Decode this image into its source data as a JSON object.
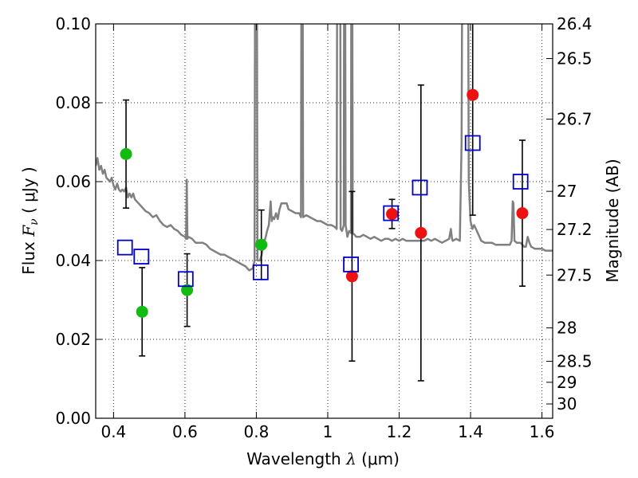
{
  "chart_data": {
    "type": "scatter",
    "xlabel": "Wavelength",
    "xlabel_symbol": "λ",
    "xlabel_unit": "(μm)",
    "ylabel": "Flux",
    "ylabel_symbol": "F",
    "ylabel_subscript": "ν",
    "ylabel_unit": "( μJy )",
    "y2label": "Magnitude (AB)",
    "xlim": [
      0.35,
      1.63
    ],
    "ylim": [
      0.0,
      0.1
    ],
    "grid": true,
    "x_ticks": [
      {
        "v": 0.4,
        "label": "0.4"
      },
      {
        "v": 0.6,
        "label": "0.6"
      },
      {
        "v": 0.8,
        "label": "0.8"
      },
      {
        "v": 1.0,
        "label": "1"
      },
      {
        "v": 1.2,
        "label": "1.2"
      },
      {
        "v": 1.4,
        "label": "1.4"
      },
      {
        "v": 1.6,
        "label": "1.6"
      }
    ],
    "y_ticks": [
      {
        "v": 0.0,
        "label": "0.00"
      },
      {
        "v": 0.02,
        "label": "0.02"
      },
      {
        "v": 0.04,
        "label": "0.04"
      },
      {
        "v": 0.06,
        "label": "0.06"
      },
      {
        "v": 0.08,
        "label": "0.08"
      },
      {
        "v": 0.1,
        "label": "0.10"
      }
    ],
    "mag_ticks": [
      {
        "mag": 26.4,
        "label": "26.4"
      },
      {
        "mag": 26.5,
        "label": "26.5"
      },
      {
        "mag": 26.7,
        "label": "26.7"
      },
      {
        "mag": 27,
        "label": "27"
      },
      {
        "mag": 27.2,
        "label": "27.2"
      },
      {
        "mag": 27.5,
        "label": "27.5"
      },
      {
        "mag": 28,
        "label": "28"
      },
      {
        "mag": 28.5,
        "label": "28.5"
      },
      {
        "mag": 29,
        "label": "29"
      },
      {
        "mag": 30,
        "label": "30"
      }
    ],
    "series": [
      {
        "marker": "circle",
        "color": "#11bb11",
        "points": [
          {
            "x": 0.435,
            "y": 0.067,
            "err": 0.0137
          },
          {
            "x": 0.48,
            "y": 0.027,
            "err": 0.0112
          },
          {
            "x": 0.606,
            "y": 0.0325,
            "err": 0.0092
          },
          {
            "x": 0.814,
            "y": 0.044,
            "err": 0.0088
          }
        ]
      },
      {
        "marker": "circle",
        "color": "#ee1111",
        "points": [
          {
            "x": 1.068,
            "y": 0.036,
            "err": 0.0215
          },
          {
            "x": 1.18,
            "y": 0.0518,
            "err": 0.0037
          },
          {
            "x": 1.261,
            "y": 0.047,
            "err": 0.0375
          },
          {
            "x": 1.406,
            "y": 0.082,
            "err": 0.0305
          },
          {
            "x": 1.545,
            "y": 0.052,
            "err": 0.0185
          }
        ]
      },
      {
        "marker": "open-square",
        "color": "#0000cc",
        "points": [
          {
            "x": 0.432,
            "y": 0.0433
          },
          {
            "x": 0.478,
            "y": 0.041
          },
          {
            "x": 0.602,
            "y": 0.0353
          },
          {
            "x": 0.812,
            "y": 0.037
          },
          {
            "x": 1.065,
            "y": 0.039
          },
          {
            "x": 1.177,
            "y": 0.052
          },
          {
            "x": 1.258,
            "y": 0.0585
          },
          {
            "x": 1.406,
            "y": 0.0698
          },
          {
            "x": 1.54,
            "y": 0.06
          }
        ]
      }
    ],
    "template_spectrum": {
      "color": "#808080",
      "points": [
        [
          0.35,
          0.064
        ],
        [
          0.355,
          0.066
        ],
        [
          0.36,
          0.063
        ],
        [
          0.365,
          0.064
        ],
        [
          0.37,
          0.062
        ],
        [
          0.375,
          0.063
        ],
        [
          0.38,
          0.061
        ],
        [
          0.385,
          0.0605
        ],
        [
          0.39,
          0.06
        ],
        [
          0.395,
          0.061
        ],
        [
          0.4,
          0.059
        ],
        [
          0.405,
          0.058
        ],
        [
          0.41,
          0.0595
        ],
        [
          0.415,
          0.058
        ],
        [
          0.42,
          0.0575
        ],
        [
          0.425,
          0.058
        ],
        [
          0.43,
          0.0575
        ],
        [
          0.435,
          0.0585
        ],
        [
          0.44,
          0.056
        ],
        [
          0.445,
          0.057
        ],
        [
          0.45,
          0.056
        ],
        [
          0.455,
          0.057
        ],
        [
          0.46,
          0.0555
        ],
        [
          0.47,
          0.0545
        ],
        [
          0.48,
          0.0535
        ],
        [
          0.49,
          0.0525
        ],
        [
          0.5,
          0.052
        ],
        [
          0.51,
          0.051
        ],
        [
          0.52,
          0.0515
        ],
        [
          0.53,
          0.05
        ],
        [
          0.54,
          0.049
        ],
        [
          0.55,
          0.0485
        ],
        [
          0.56,
          0.049
        ],
        [
          0.57,
          0.048
        ],
        [
          0.58,
          0.0475
        ],
        [
          0.59,
          0.0465
        ],
        [
          0.6,
          0.046
        ],
        [
          0.603,
          0.0455
        ],
        [
          0.605,
          0.0605
        ],
        [
          0.607,
          0.0455
        ],
        [
          0.61,
          0.046
        ],
        [
          0.62,
          0.0455
        ],
        [
          0.63,
          0.0445
        ],
        [
          0.64,
          0.0445
        ],
        [
          0.65,
          0.0445
        ],
        [
          0.66,
          0.044
        ],
        [
          0.67,
          0.043
        ],
        [
          0.68,
          0.0425
        ],
        [
          0.69,
          0.042
        ],
        [
          0.7,
          0.0415
        ],
        [
          0.71,
          0.0415
        ],
        [
          0.72,
          0.041
        ],
        [
          0.73,
          0.0405
        ],
        [
          0.74,
          0.04
        ],
        [
          0.75,
          0.0395
        ],
        [
          0.76,
          0.039
        ],
        [
          0.77,
          0.0385
        ],
        [
          0.78,
          0.0375
        ],
        [
          0.79,
          0.038
        ],
        [
          0.795,
          0.04
        ],
        [
          0.798,
          0.2
        ],
        [
          0.8,
          0.2
        ],
        [
          0.803,
          0.04
        ],
        [
          0.81,
          0.04
        ],
        [
          0.815,
          0.0415
        ],
        [
          0.82,
          0.0445
        ],
        [
          0.825,
          0.0455
        ],
        [
          0.83,
          0.0475
        ],
        [
          0.835,
          0.049
        ],
        [
          0.84,
          0.055
        ],
        [
          0.843,
          0.05
        ],
        [
          0.846,
          0.051
        ],
        [
          0.85,
          0.0505
        ],
        [
          0.855,
          0.052
        ],
        [
          0.86,
          0.0505
        ],
        [
          0.865,
          0.053
        ],
        [
          0.87,
          0.0545
        ],
        [
          0.875,
          0.0545
        ],
        [
          0.88,
          0.0545
        ],
        [
          0.885,
          0.0545
        ],
        [
          0.89,
          0.053
        ],
        [
          0.9,
          0.0525
        ],
        [
          0.91,
          0.052
        ],
        [
          0.92,
          0.052
        ],
        [
          0.925,
          0.051
        ],
        [
          0.928,
          0.2
        ],
        [
          0.931,
          0.051
        ],
        [
          0.94,
          0.0515
        ],
        [
          0.95,
          0.051
        ],
        [
          0.96,
          0.0505
        ],
        [
          0.97,
          0.05
        ],
        [
          0.98,
          0.05
        ],
        [
          0.99,
          0.0495
        ],
        [
          1.0,
          0.049
        ],
        [
          1.01,
          0.049
        ],
        [
          1.02,
          0.0485
        ],
        [
          1.025,
          0.048
        ],
        [
          1.028,
          0.2
        ],
        [
          1.034,
          0.2
        ],
        [
          1.036,
          0.048
        ],
        [
          1.04,
          0.0475
        ],
        [
          1.045,
          0.049
        ],
        [
          1.047,
          0.2
        ],
        [
          1.05,
          0.049
        ],
        [
          1.055,
          0.046
        ],
        [
          1.06,
          0.0475
        ],
        [
          1.065,
          0.047
        ],
        [
          1.067,
          0.2
        ],
        [
          1.07,
          0.047
        ],
        [
          1.075,
          0.0465
        ],
        [
          1.08,
          0.046
        ],
        [
          1.09,
          0.046
        ],
        [
          1.1,
          0.0465
        ],
        [
          1.11,
          0.046
        ],
        [
          1.12,
          0.0455
        ],
        [
          1.13,
          0.046
        ],
        [
          1.14,
          0.0455
        ],
        [
          1.15,
          0.045
        ],
        [
          1.16,
          0.0455
        ],
        [
          1.17,
          0.0455
        ],
        [
          1.18,
          0.045
        ],
        [
          1.19,
          0.0455
        ],
        [
          1.2,
          0.045
        ],
        [
          1.21,
          0.0455
        ],
        [
          1.22,
          0.045
        ],
        [
          1.23,
          0.045
        ],
        [
          1.24,
          0.045
        ],
        [
          1.25,
          0.045
        ],
        [
          1.26,
          0.045
        ],
        [
          1.27,
          0.045
        ],
        [
          1.28,
          0.0455
        ],
        [
          1.29,
          0.045
        ],
        [
          1.3,
          0.0455
        ],
        [
          1.31,
          0.045
        ],
        [
          1.32,
          0.0445
        ],
        [
          1.33,
          0.045
        ],
        [
          1.34,
          0.0455
        ],
        [
          1.345,
          0.048
        ],
        [
          1.348,
          0.0455
        ],
        [
          1.35,
          0.045
        ],
        [
          1.36,
          0.0455
        ],
        [
          1.37,
          0.045
        ],
        [
          1.375,
          0.07
        ],
        [
          1.38,
          0.2
        ],
        [
          1.39,
          0.2
        ],
        [
          1.395,
          0.06
        ],
        [
          1.4,
          0.05
        ],
        [
          1.405,
          0.048
        ],
        [
          1.41,
          0.049
        ],
        [
          1.415,
          0.048
        ],
        [
          1.42,
          0.047
        ],
        [
          1.425,
          0.046
        ],
        [
          1.43,
          0.045
        ],
        [
          1.44,
          0.0445
        ],
        [
          1.45,
          0.0445
        ],
        [
          1.46,
          0.0445
        ],
        [
          1.47,
          0.044
        ],
        [
          1.48,
          0.044
        ],
        [
          1.49,
          0.044
        ],
        [
          1.5,
          0.044
        ],
        [
          1.51,
          0.044
        ],
        [
          1.515,
          0.045
        ],
        [
          1.518,
          0.055
        ],
        [
          1.52,
          0.0545
        ],
        [
          1.523,
          0.045
        ],
        [
          1.53,
          0.0445
        ],
        [
          1.54,
          0.0445
        ],
        [
          1.55,
          0.0435
        ],
        [
          1.555,
          0.0435
        ],
        [
          1.56,
          0.046
        ],
        [
          1.565,
          0.0445
        ],
        [
          1.57,
          0.0435
        ],
        [
          1.58,
          0.043
        ],
        [
          1.59,
          0.043
        ],
        [
          1.6,
          0.043
        ],
        [
          1.61,
          0.0425
        ],
        [
          1.62,
          0.0425
        ],
        [
          1.63,
          0.0425
        ]
      ]
    }
  }
}
